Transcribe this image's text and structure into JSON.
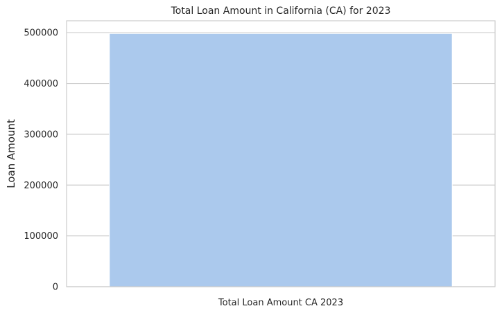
{
  "chart_data": {
    "type": "bar",
    "title": "Total Loan Amount in California (CA) for 2023",
    "xlabel": "",
    "ylabel": "Loan Amount",
    "categories": [
      "Total Loan Amount CA 2023"
    ],
    "values": [
      498500
    ],
    "ylim": [
      0,
      523425
    ],
    "yticks": [
      0,
      100000,
      200000,
      300000,
      400000,
      500000
    ],
    "ytick_labels": [
      "0",
      "100000",
      "200000",
      "300000",
      "400000",
      "500000"
    ],
    "grid": true,
    "colors": {
      "bar": "#abc9ed",
      "grid": "#cccccc",
      "frame": "#cccccc"
    }
  }
}
